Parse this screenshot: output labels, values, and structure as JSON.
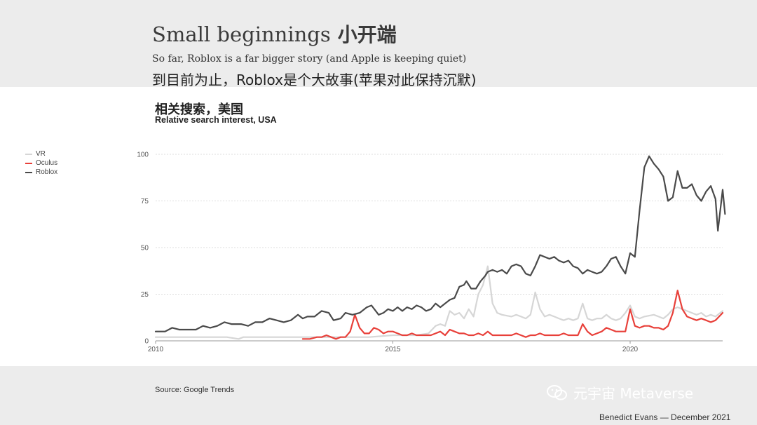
{
  "header": {
    "title": "Small beginnings",
    "title_cn": "小开端",
    "subtitle": "So far, Roblox is a far bigger story (and Apple is keeping quiet)",
    "subtitle_cn": "到目前为止，Roblox是个大故事(苹果对此保持沉默)"
  },
  "chart_data": {
    "type": "line",
    "title_cn": "相关搜索，美国",
    "title": "Relative search interest, USA",
    "xlabel": "",
    "ylabel": "",
    "xlim": [
      2010,
      2021.95
    ],
    "ylim": [
      0,
      100
    ],
    "y_ticks": [
      0,
      25,
      50,
      75,
      100
    ],
    "x_ticks": [
      2010,
      2015,
      2020
    ],
    "grid": true,
    "legend_position": "left",
    "series": [
      {
        "name": "VR",
        "color": "#d6d6d6",
        "points": [
          [
            2010.0,
            2
          ],
          [
            2010.5,
            2
          ],
          [
            2011.0,
            2
          ],
          [
            2011.5,
            2
          ],
          [
            2011.75,
            1
          ],
          [
            2011.85,
            2
          ],
          [
            2012.5,
            2
          ],
          [
            2013.0,
            2
          ],
          [
            2013.5,
            2
          ],
          [
            2014.0,
            2
          ],
          [
            2014.5,
            2
          ],
          [
            2015.0,
            3
          ],
          [
            2015.5,
            3
          ],
          [
            2015.75,
            4
          ],
          [
            2015.9,
            8
          ],
          [
            2016.0,
            9
          ],
          [
            2016.1,
            8
          ],
          [
            2016.2,
            16
          ],
          [
            2016.3,
            14
          ],
          [
            2016.4,
            15
          ],
          [
            2016.5,
            12
          ],
          [
            2016.6,
            17
          ],
          [
            2016.7,
            13
          ],
          [
            2016.8,
            25
          ],
          [
            2016.9,
            30
          ],
          [
            2017.0,
            40
          ],
          [
            2017.1,
            20
          ],
          [
            2017.2,
            15
          ],
          [
            2017.3,
            14
          ],
          [
            2017.5,
            13
          ],
          [
            2017.6,
            14
          ],
          [
            2017.7,
            13
          ],
          [
            2017.8,
            12
          ],
          [
            2017.9,
            14
          ],
          [
            2018.0,
            26
          ],
          [
            2018.1,
            17
          ],
          [
            2018.2,
            13
          ],
          [
            2018.3,
            14
          ],
          [
            2018.4,
            13
          ],
          [
            2018.5,
            12
          ],
          [
            2018.6,
            11
          ],
          [
            2018.7,
            12
          ],
          [
            2018.8,
            11
          ],
          [
            2018.9,
            12
          ],
          [
            2019.0,
            20
          ],
          [
            2019.1,
            12
          ],
          [
            2019.2,
            11
          ],
          [
            2019.3,
            12
          ],
          [
            2019.4,
            12
          ],
          [
            2019.5,
            14
          ],
          [
            2019.6,
            12
          ],
          [
            2019.7,
            11
          ],
          [
            2019.8,
            12
          ],
          [
            2019.9,
            15
          ],
          [
            2020.0,
            19
          ],
          [
            2020.1,
            13
          ],
          [
            2020.2,
            12
          ],
          [
            2020.3,
            13
          ],
          [
            2020.5,
            14
          ],
          [
            2020.6,
            13
          ],
          [
            2020.7,
            12
          ],
          [
            2020.8,
            14
          ],
          [
            2020.9,
            17
          ],
          [
            2021.0,
            18
          ],
          [
            2021.1,
            17
          ],
          [
            2021.2,
            16
          ],
          [
            2021.3,
            15
          ],
          [
            2021.4,
            14
          ],
          [
            2021.5,
            15
          ],
          [
            2021.6,
            13
          ],
          [
            2021.7,
            14
          ],
          [
            2021.8,
            13
          ],
          [
            2021.95,
            16
          ]
        ]
      },
      {
        "name": "Oculus",
        "color": "#e8403a",
        "points": [
          [
            2013.1,
            1
          ],
          [
            2013.25,
            1
          ],
          [
            2013.4,
            2
          ],
          [
            2013.5,
            2
          ],
          [
            2013.6,
            3
          ],
          [
            2013.7,
            2
          ],
          [
            2013.8,
            1
          ],
          [
            2013.9,
            2
          ],
          [
            2014.0,
            2
          ],
          [
            2014.1,
            5
          ],
          [
            2014.2,
            14
          ],
          [
            2014.3,
            7
          ],
          [
            2014.4,
            4
          ],
          [
            2014.5,
            4
          ],
          [
            2014.6,
            7
          ],
          [
            2014.7,
            6
          ],
          [
            2014.8,
            4
          ],
          [
            2014.9,
            5
          ],
          [
            2015.0,
            5
          ],
          [
            2015.1,
            4
          ],
          [
            2015.2,
            3
          ],
          [
            2015.3,
            3
          ],
          [
            2015.4,
            4
          ],
          [
            2015.5,
            3
          ],
          [
            2015.6,
            3
          ],
          [
            2015.7,
            3
          ],
          [
            2015.8,
            3
          ],
          [
            2015.9,
            4
          ],
          [
            2016.0,
            5
          ],
          [
            2016.1,
            3
          ],
          [
            2016.2,
            6
          ],
          [
            2016.3,
            5
          ],
          [
            2016.4,
            4
          ],
          [
            2016.5,
            4
          ],
          [
            2016.6,
            3
          ],
          [
            2016.7,
            3
          ],
          [
            2016.8,
            4
          ],
          [
            2016.9,
            3
          ],
          [
            2017.0,
            5
          ],
          [
            2017.1,
            3
          ],
          [
            2017.2,
            3
          ],
          [
            2017.3,
            3
          ],
          [
            2017.5,
            3
          ],
          [
            2017.6,
            4
          ],
          [
            2017.7,
            3
          ],
          [
            2017.8,
            2
          ],
          [
            2017.9,
            3
          ],
          [
            2018.0,
            3
          ],
          [
            2018.1,
            4
          ],
          [
            2018.2,
            3
          ],
          [
            2018.3,
            3
          ],
          [
            2018.4,
            3
          ],
          [
            2018.5,
            3
          ],
          [
            2018.6,
            4
          ],
          [
            2018.7,
            3
          ],
          [
            2018.8,
            3
          ],
          [
            2018.9,
            3
          ],
          [
            2019.0,
            9
          ],
          [
            2019.1,
            5
          ],
          [
            2019.2,
            3
          ],
          [
            2019.3,
            4
          ],
          [
            2019.4,
            5
          ],
          [
            2019.5,
            7
          ],
          [
            2019.6,
            6
          ],
          [
            2019.7,
            5
          ],
          [
            2019.8,
            5
          ],
          [
            2019.9,
            5
          ],
          [
            2020.0,
            17
          ],
          [
            2020.1,
            8
          ],
          [
            2020.2,
            7
          ],
          [
            2020.3,
            8
          ],
          [
            2020.4,
            8
          ],
          [
            2020.5,
            7
          ],
          [
            2020.6,
            7
          ],
          [
            2020.7,
            6
          ],
          [
            2020.8,
            8
          ],
          [
            2020.9,
            15
          ],
          [
            2021.0,
            27
          ],
          [
            2021.1,
            17
          ],
          [
            2021.2,
            13
          ],
          [
            2021.3,
            12
          ],
          [
            2021.4,
            11
          ],
          [
            2021.5,
            12
          ],
          [
            2021.6,
            11
          ],
          [
            2021.7,
            10
          ],
          [
            2021.8,
            11
          ],
          [
            2021.95,
            15
          ]
        ]
      },
      {
        "name": "Roblox",
        "color": "#4a4a4a",
        "points": [
          [
            2010.0,
            5
          ],
          [
            2010.2,
            5
          ],
          [
            2010.35,
            7
          ],
          [
            2010.5,
            6
          ],
          [
            2010.7,
            6
          ],
          [
            2010.85,
            6
          ],
          [
            2011.0,
            8
          ],
          [
            2011.15,
            7
          ],
          [
            2011.3,
            8
          ],
          [
            2011.45,
            10
          ],
          [
            2011.6,
            9
          ],
          [
            2011.8,
            9
          ],
          [
            2011.95,
            8
          ],
          [
            2012.1,
            10
          ],
          [
            2012.25,
            10
          ],
          [
            2012.4,
            12
          ],
          [
            2012.55,
            11
          ],
          [
            2012.7,
            10
          ],
          [
            2012.85,
            11
          ],
          [
            2013.0,
            14
          ],
          [
            2013.1,
            12
          ],
          [
            2013.2,
            13
          ],
          [
            2013.35,
            13
          ],
          [
            2013.5,
            16
          ],
          [
            2013.65,
            15
          ],
          [
            2013.75,
            11
          ],
          [
            2013.9,
            12
          ],
          [
            2014.0,
            15
          ],
          [
            2014.15,
            14
          ],
          [
            2014.3,
            15
          ],
          [
            2014.45,
            18
          ],
          [
            2014.55,
            19
          ],
          [
            2014.7,
            14
          ],
          [
            2014.8,
            15
          ],
          [
            2014.9,
            17
          ],
          [
            2015.0,
            16
          ],
          [
            2015.1,
            18
          ],
          [
            2015.2,
            16
          ],
          [
            2015.3,
            18
          ],
          [
            2015.4,
            17
          ],
          [
            2015.5,
            19
          ],
          [
            2015.6,
            18
          ],
          [
            2015.7,
            16
          ],
          [
            2015.8,
            17
          ],
          [
            2015.9,
            20
          ],
          [
            2016.0,
            18
          ],
          [
            2016.1,
            20
          ],
          [
            2016.2,
            22
          ],
          [
            2016.3,
            23
          ],
          [
            2016.4,
            29
          ],
          [
            2016.5,
            30
          ],
          [
            2016.55,
            32
          ],
          [
            2016.65,
            28
          ],
          [
            2016.75,
            28
          ],
          [
            2016.85,
            32
          ],
          [
            2016.95,
            35
          ],
          [
            2017.0,
            37
          ],
          [
            2017.1,
            38
          ],
          [
            2017.2,
            37
          ],
          [
            2017.3,
            38
          ],
          [
            2017.4,
            36
          ],
          [
            2017.5,
            40
          ],
          [
            2017.6,
            41
          ],
          [
            2017.7,
            40
          ],
          [
            2017.8,
            36
          ],
          [
            2017.9,
            35
          ],
          [
            2018.0,
            40
          ],
          [
            2018.1,
            46
          ],
          [
            2018.2,
            45
          ],
          [
            2018.3,
            44
          ],
          [
            2018.4,
            45
          ],
          [
            2018.5,
            43
          ],
          [
            2018.6,
            42
          ],
          [
            2018.7,
            43
          ],
          [
            2018.8,
            40
          ],
          [
            2018.9,
            39
          ],
          [
            2019.0,
            36
          ],
          [
            2019.1,
            38
          ],
          [
            2019.2,
            37
          ],
          [
            2019.3,
            36
          ],
          [
            2019.4,
            37
          ],
          [
            2019.5,
            40
          ],
          [
            2019.6,
            44
          ],
          [
            2019.7,
            45
          ],
          [
            2019.8,
            40
          ],
          [
            2019.9,
            36
          ],
          [
            2020.0,
            47
          ],
          [
            2020.1,
            45
          ],
          [
            2020.2,
            70
          ],
          [
            2020.3,
            93
          ],
          [
            2020.4,
            99
          ],
          [
            2020.5,
            95
          ],
          [
            2020.6,
            92
          ],
          [
            2020.7,
            88
          ],
          [
            2020.8,
            75
          ],
          [
            2020.9,
            77
          ],
          [
            2021.0,
            91
          ],
          [
            2021.1,
            82
          ],
          [
            2021.2,
            82
          ],
          [
            2021.3,
            84
          ],
          [
            2021.4,
            78
          ],
          [
            2021.5,
            75
          ],
          [
            2021.6,
            80
          ],
          [
            2021.7,
            83
          ],
          [
            2021.8,
            76
          ],
          [
            2021.85,
            59
          ],
          [
            2021.95,
            81
          ],
          [
            2022.0,
            68
          ]
        ]
      }
    ]
  },
  "footer": {
    "source": "Source: Google Trends",
    "watermark": "元宇宙 Metaverse",
    "credit": "Benedict Evans — December 2021"
  }
}
